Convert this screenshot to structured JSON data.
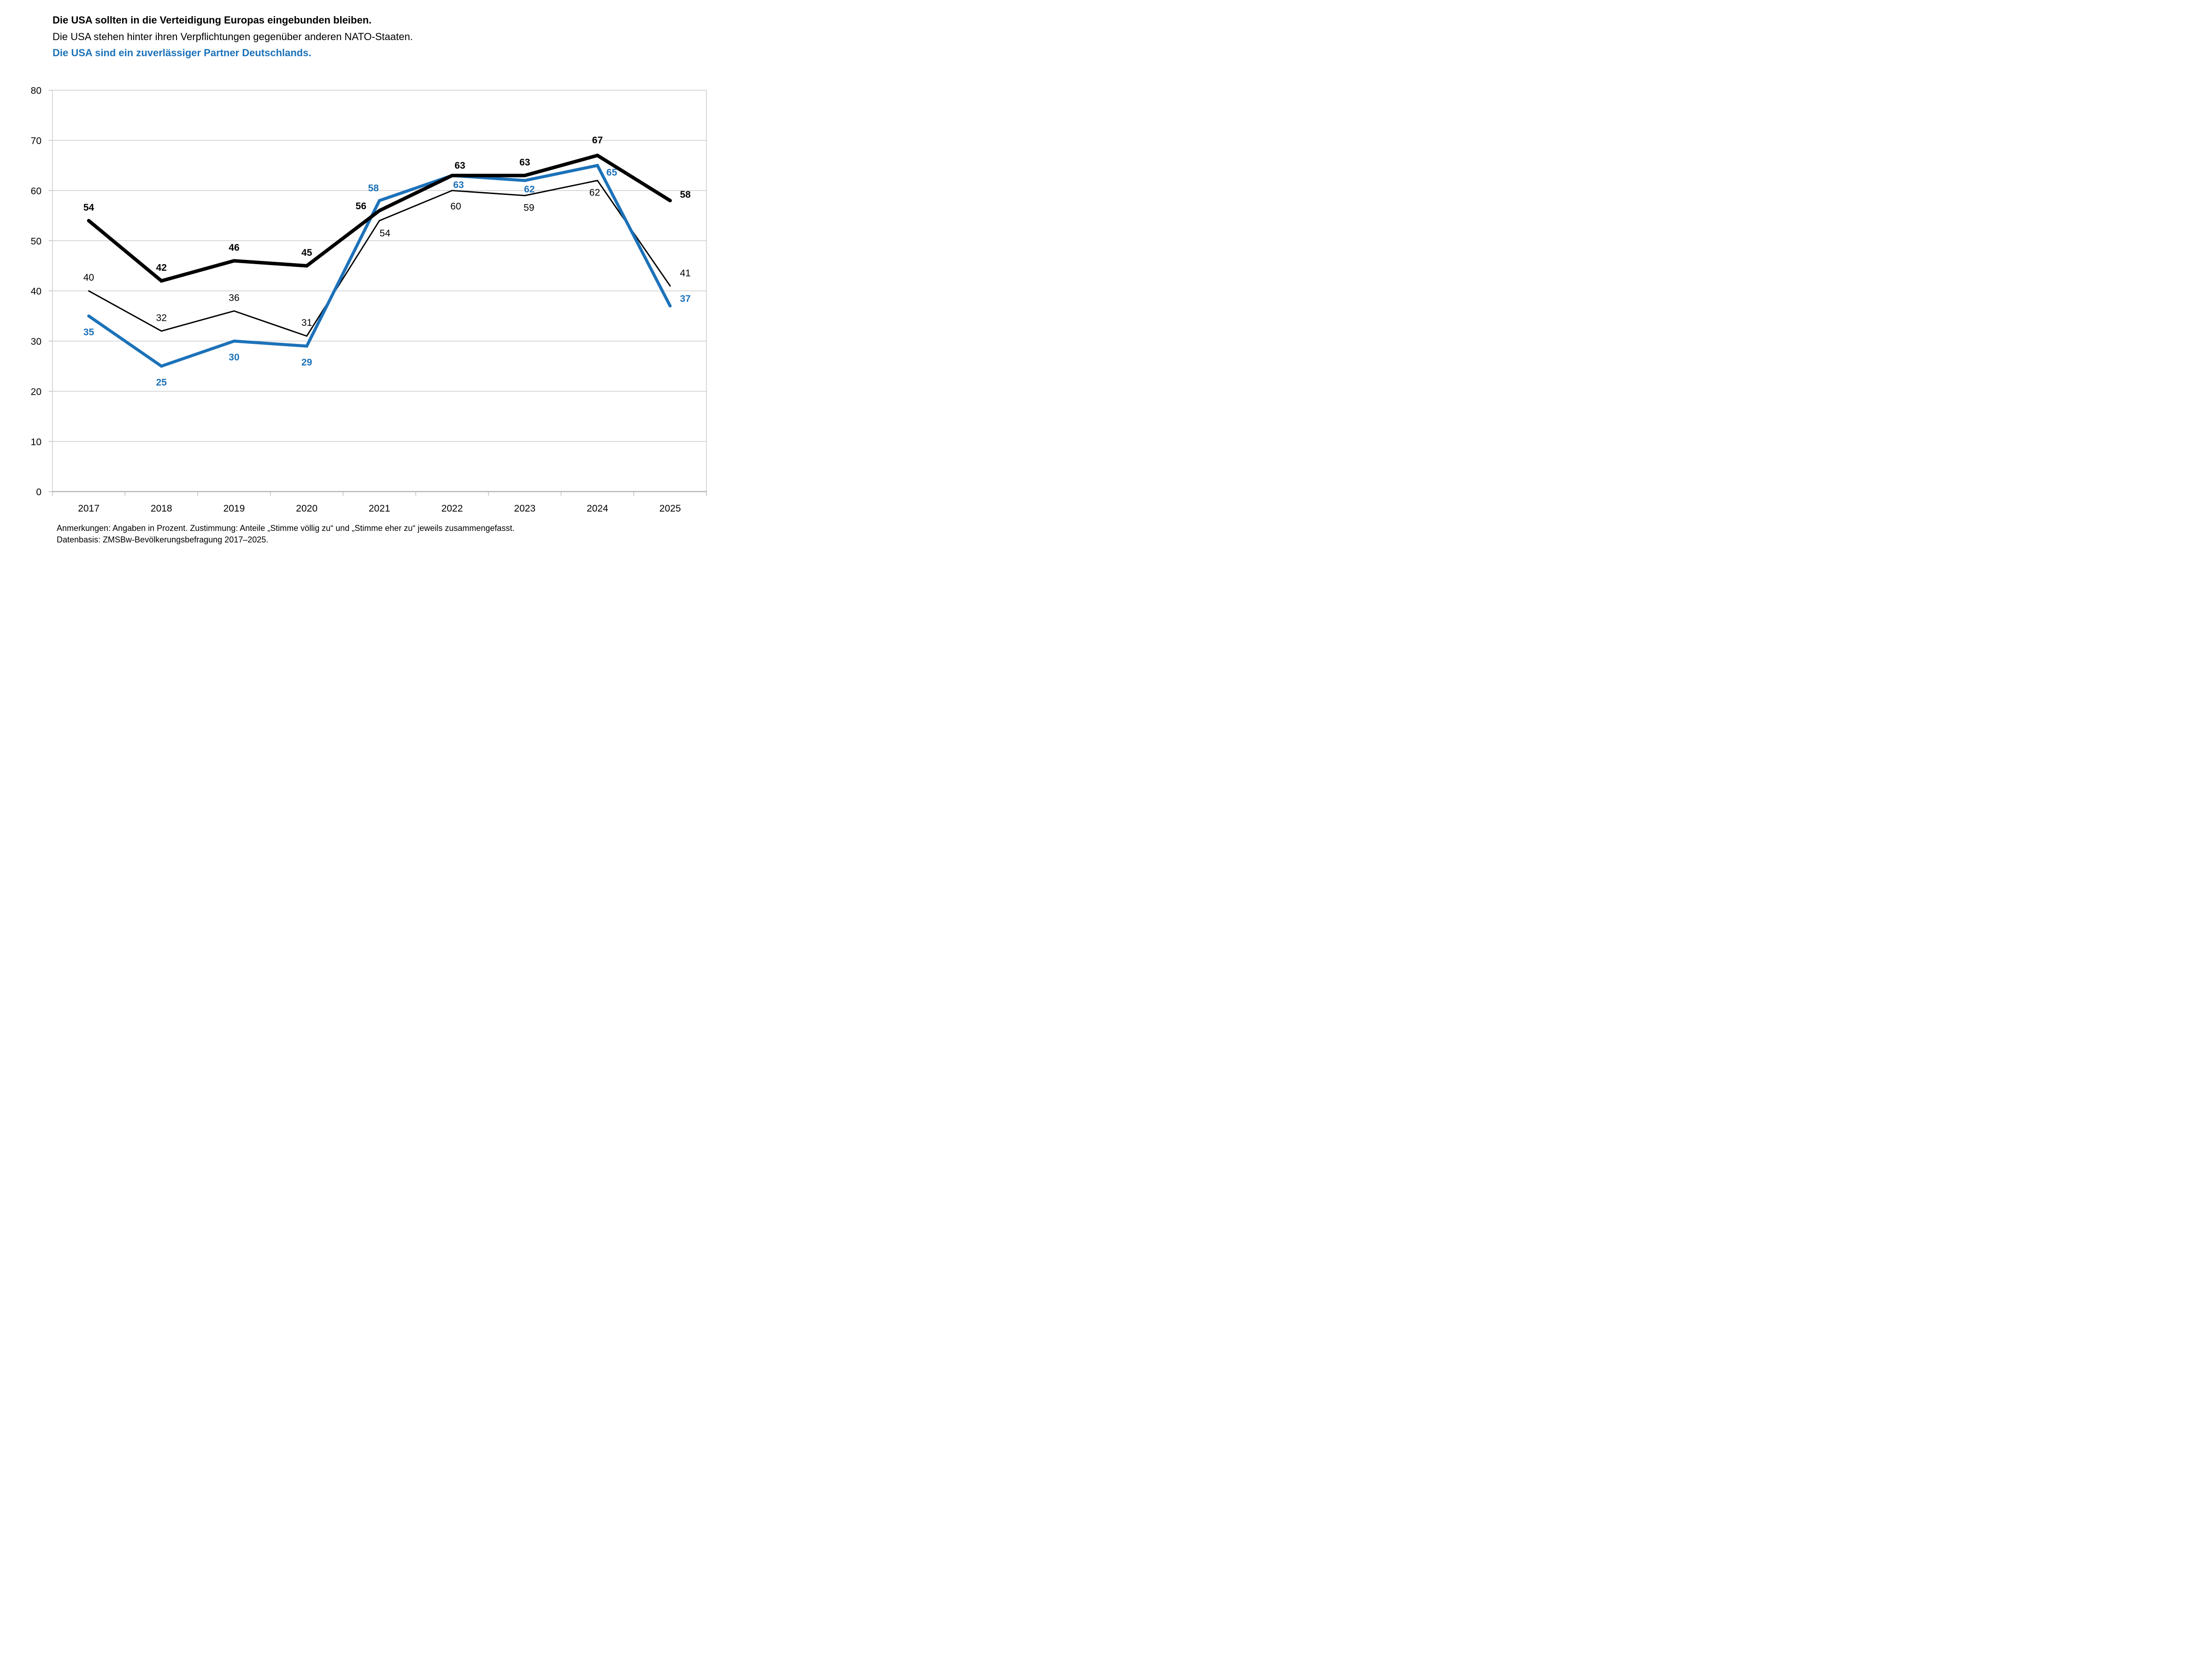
{
  "chart_data": {
    "type": "line",
    "title": "",
    "xlabel": "",
    "ylabel": "",
    "categories": [
      "2017",
      "2018",
      "2019",
      "2020",
      "2021",
      "2022",
      "2023",
      "2024",
      "2025"
    ],
    "series": [
      {
        "name": "Die USA sollten in die Verteidigung Europas eingebunden bleiben.",
        "color": "#000000",
        "weight": "thick",
        "bold_labels": true,
        "values": [
          54,
          42,
          46,
          45,
          56,
          63,
          63,
          67,
          58
        ]
      },
      {
        "name": "Die USA stehen hinter ihren Verpflichtungen gegenüber anderen NATO-Staaten.",
        "color": "#000000",
        "weight": "thin",
        "bold_labels": false,
        "values": [
          40,
          32,
          36,
          31,
          54,
          60,
          59,
          62,
          41
        ]
      },
      {
        "name": "Die USA sind ein zuverlässiger Partner Deutschlands.",
        "color": "#1C72B9",
        "weight": "medium",
        "bold_labels": true,
        "values": [
          35,
          25,
          30,
          29,
          58,
          63,
          62,
          65,
          37
        ]
      }
    ],
    "ylim": [
      0,
      80
    ],
    "ytick_step": 10,
    "grid": true,
    "legend_position": "top-left-as-colored-title-lines",
    "colors": {
      "grid": "#c9c9c9",
      "axis": "#b9b9b9",
      "tick": "#b9b9b9",
      "accent_blue": "#1C72B9"
    }
  },
  "footer": {
    "line1": "Anmerkungen: Angaben in Prozent. Zustimmung: Anteile „Stimme völlig zu“ und „Stimme eher zu“ jeweils zusammengefasst.",
    "line2": "Datenbasis: ZMSBw-Bevölkerungsbefragung 2017–2025."
  }
}
